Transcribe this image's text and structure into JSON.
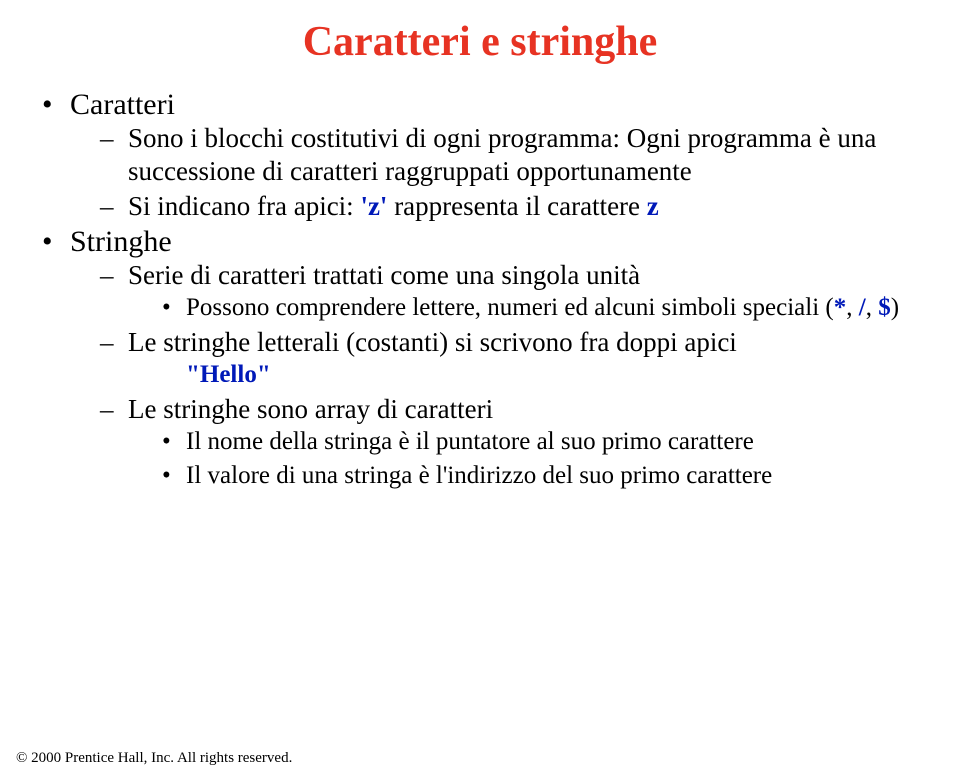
{
  "colors": {
    "accent_red": "#e73323",
    "accent_blue": "#0019b8",
    "text": "#000000",
    "background": "#ffffff"
  },
  "title": "Caratteri e stringhe",
  "bullets": [
    {
      "label": "Caratteri",
      "children": [
        {
          "text": "Sono i blocchi costitutivi di ogni programma: Ogni programma è una successione di caratteri raggruppati opportunamente"
        },
        {
          "text_prefix": "Si indicano fra apici: ",
          "code": "'z'",
          "text_mid": " rappresenta il carattere ",
          "code2": "z"
        }
      ]
    },
    {
      "label": "Stringhe",
      "children": [
        {
          "text": "Serie di caratteri trattati come una singola unità",
          "sub": [
            {
              "text_prefix": "Possono comprendere lettere, numeri ed alcuni simboli speciali (",
              "code": "*",
              "sep1": ", ",
              "code2": "/",
              "sep2": ", ",
              "code3": "$",
              "text_suffix": ")"
            }
          ]
        },
        {
          "text": "Le stringhe letterali (costanti) si scrivono fra doppi apici",
          "sub": [
            {
              "code_only": "\"Hello\""
            }
          ]
        },
        {
          "text": "Le stringhe sono array di caratteri",
          "sub": [
            {
              "text": "Il nome della stringa è il puntatore al suo primo carattere"
            },
            {
              "text": "Il valore di una stringa è l'indirizzo del suo primo carattere"
            }
          ]
        }
      ]
    }
  ],
  "copyright": "© 2000 Prentice Hall, Inc. All rights reserved."
}
